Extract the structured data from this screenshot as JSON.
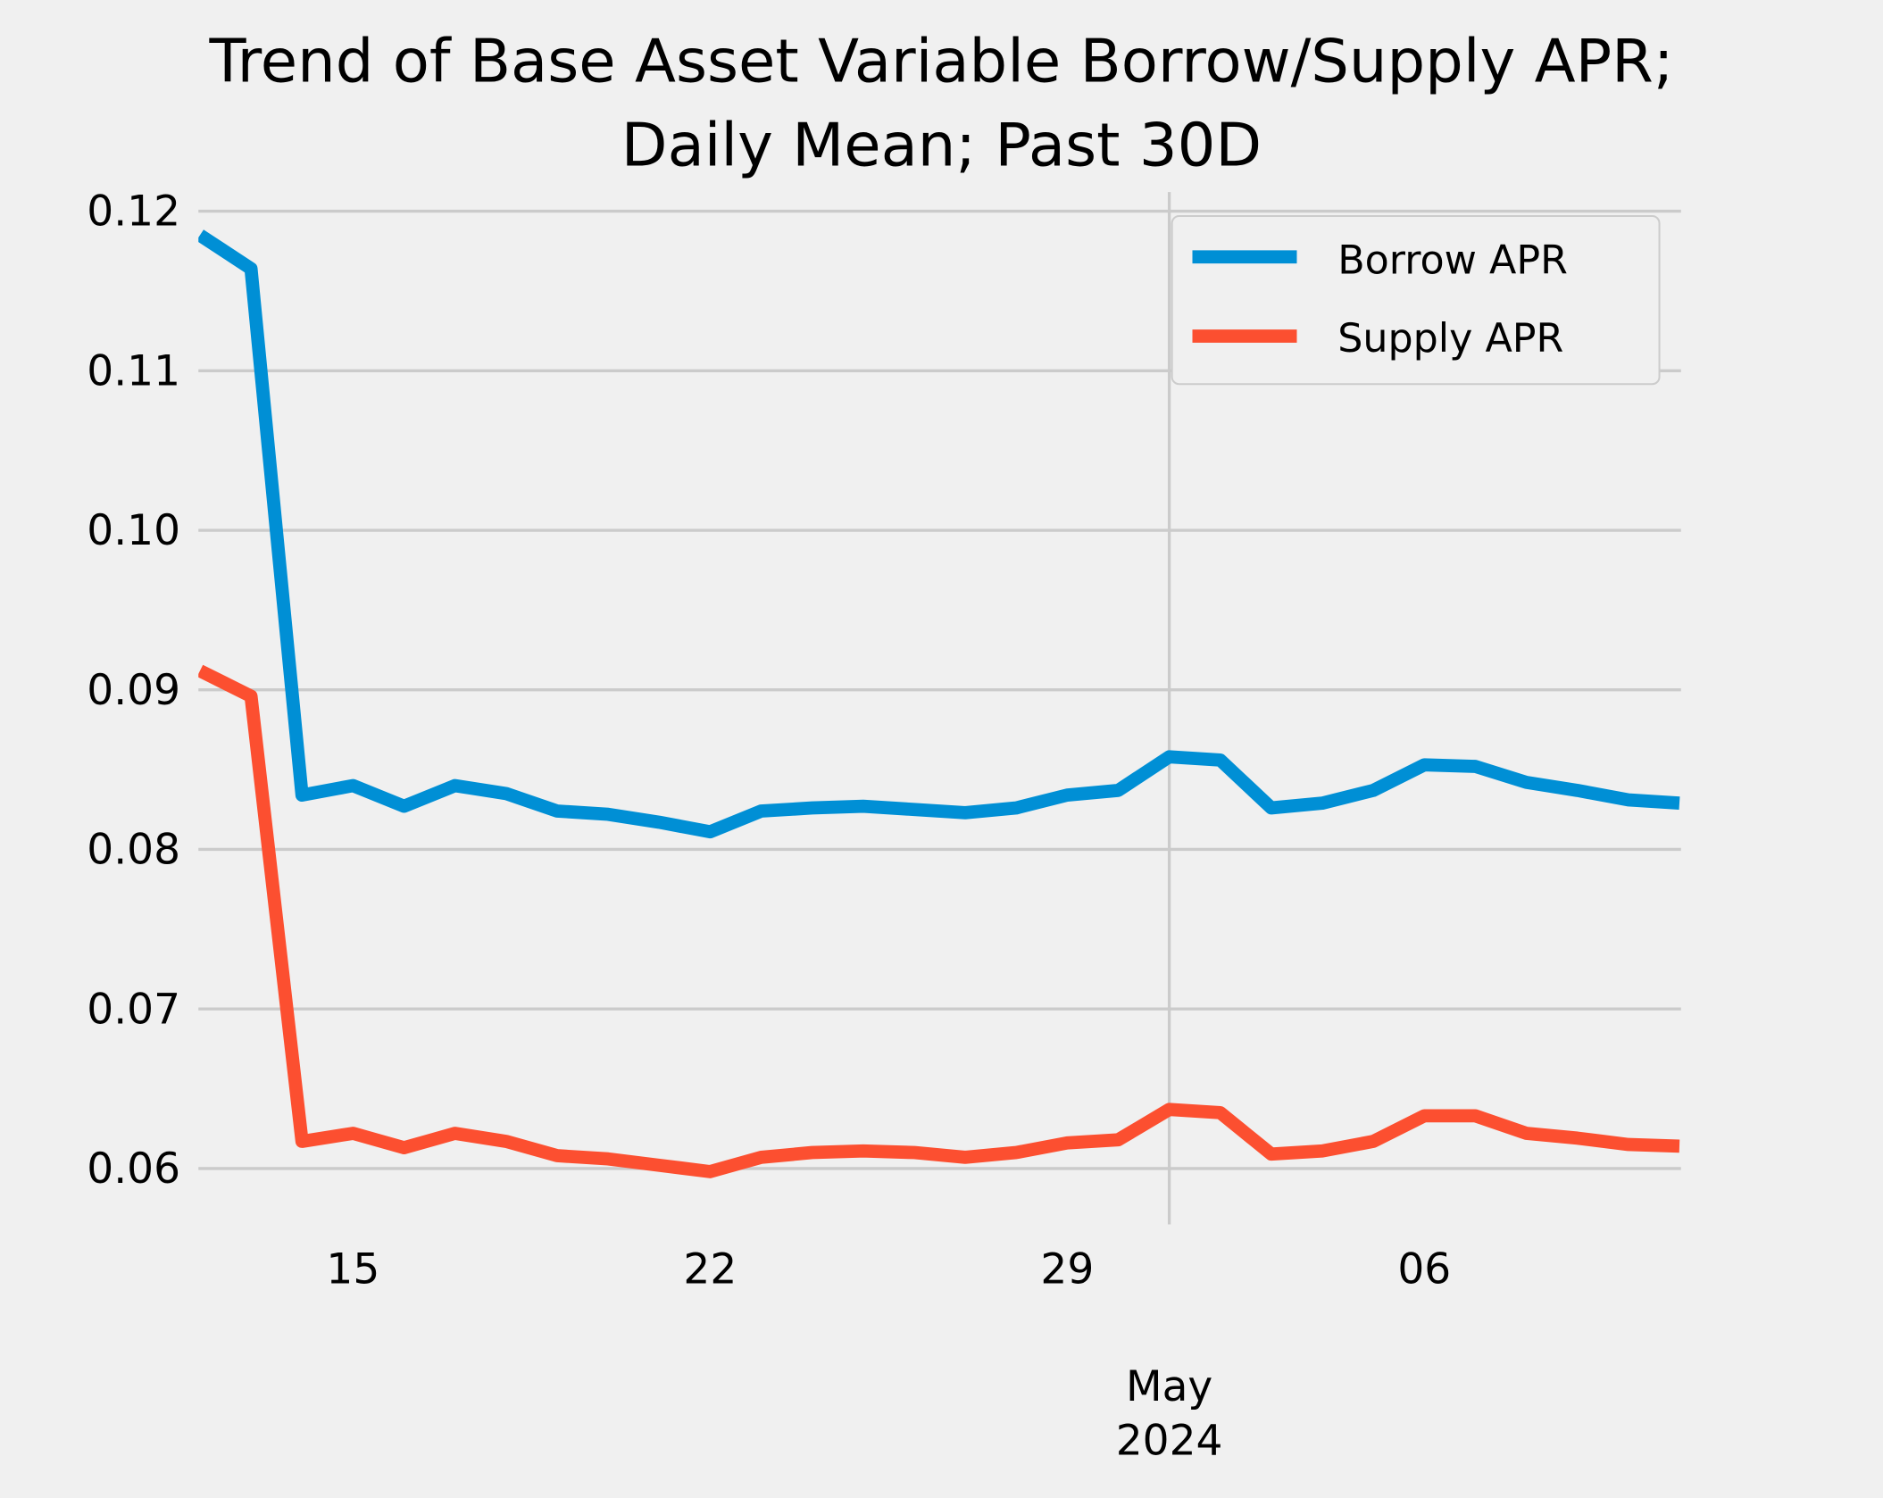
{
  "chart_data": {
    "type": "line",
    "title_lines": [
      "Trend of Base Asset Variable Borrow/Supply APR;",
      "Daily Mean; Past 30D"
    ],
    "xlabel": "",
    "ylabel": "",
    "x": [
      "2024-04-12",
      "2024-04-13",
      "2024-04-14",
      "2024-04-15",
      "2024-04-16",
      "2024-04-17",
      "2024-04-18",
      "2024-04-19",
      "2024-04-20",
      "2024-04-21",
      "2024-04-22",
      "2024-04-23",
      "2024-04-24",
      "2024-04-25",
      "2024-04-26",
      "2024-04-27",
      "2024-04-28",
      "2024-04-29",
      "2024-04-30",
      "2024-05-01",
      "2024-05-02",
      "2024-05-03",
      "2024-05-04",
      "2024-05-05",
      "2024-05-06",
      "2024-05-07",
      "2024-05-08",
      "2024-05-09",
      "2024-05-10",
      "2024-05-11"
    ],
    "series": [
      {
        "name": "Borrow APR",
        "color": "#008fd5",
        "values": [
          0.1185,
          0.1164,
          0.0834,
          0.084,
          0.0827,
          0.084,
          0.0835,
          0.0824,
          0.0822,
          0.0817,
          0.0811,
          0.0824,
          0.0826,
          0.0827,
          0.0825,
          0.0823,
          0.0826,
          0.0834,
          0.0837,
          0.0858,
          0.0856,
          0.0826,
          0.0829,
          0.0837,
          0.0853,
          0.0852,
          0.0842,
          0.0837,
          0.0831,
          0.0829
        ]
      },
      {
        "name": "Supply APR",
        "color": "#fc4f30",
        "values": [
          0.0912,
          0.0896,
          0.0617,
          0.0622,
          0.0613,
          0.0622,
          0.0617,
          0.0608,
          0.0606,
          0.0602,
          0.0598,
          0.0607,
          0.061,
          0.0611,
          0.061,
          0.0607,
          0.061,
          0.0616,
          0.0618,
          0.0637,
          0.0635,
          0.0609,
          0.0611,
          0.0617,
          0.0633,
          0.0633,
          0.0622,
          0.0619,
          0.0615,
          0.0614
        ]
      }
    ],
    "ylim": [
      0.0565,
      0.1212
    ],
    "xlim": [
      "2024-04-12",
      "2024-05-11"
    ],
    "yticks": [
      0.06,
      0.07,
      0.08,
      0.09,
      0.1,
      0.11,
      0.12
    ],
    "ytick_labels": [
      "0.06",
      "0.07",
      "0.08",
      "0.09",
      "0.10",
      "0.11",
      "0.12"
    ],
    "xticks_minor": [
      {
        "date": "2024-04-15",
        "label": "15"
      },
      {
        "date": "2024-04-22",
        "label": "22"
      },
      {
        "date": "2024-04-29",
        "label": "29"
      },
      {
        "date": "2024-05-06",
        "label": "06"
      }
    ],
    "xtick_major": {
      "date": "2024-05-01",
      "label_lines": [
        "May",
        "2024"
      ]
    },
    "grid": true,
    "legend_placement": "top-right",
    "background": "#f0f0f0",
    "grid_color": "#cbcbcb"
  }
}
